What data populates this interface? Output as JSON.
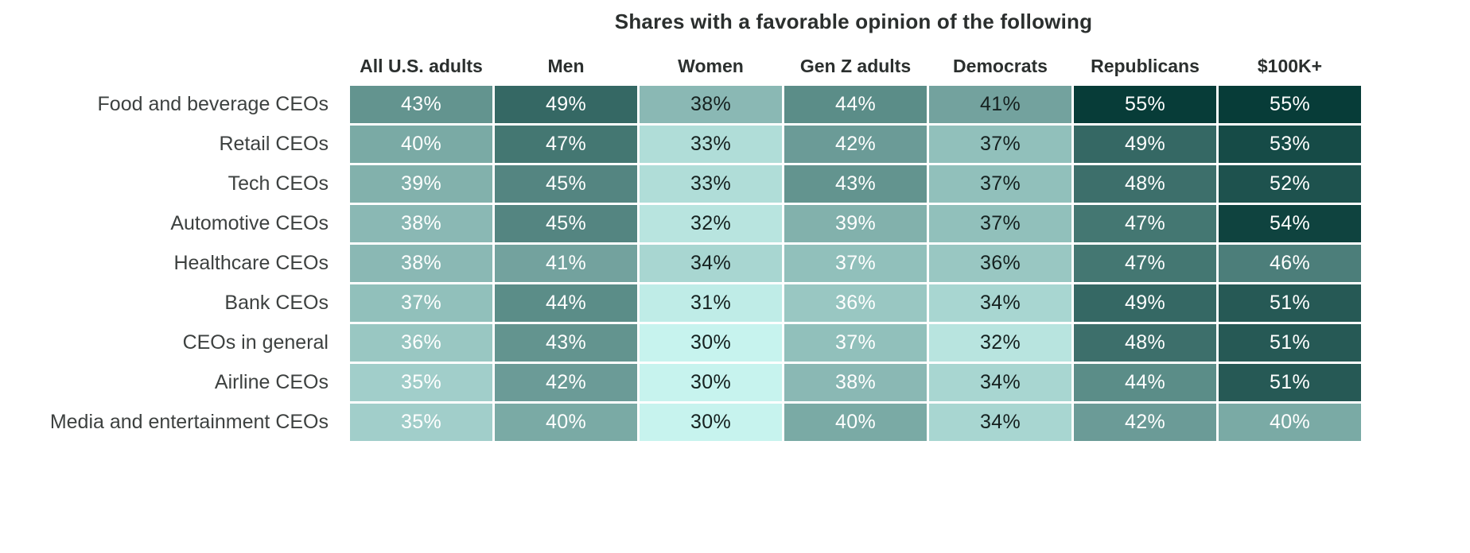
{
  "title": "Shares with a favorable opinion of the following",
  "chart_data": {
    "type": "heatmap",
    "title": "Shares with a favorable opinion of the following",
    "columns": [
      "All U.S. adults",
      "Men",
      "Women",
      "Gen Z adults",
      "Democrats",
      "Republicans",
      "$100K+"
    ],
    "rows": [
      "Food and beverage CEOs",
      "Retail CEOs",
      "Tech CEOs",
      "Automotive CEOs",
      "Healthcare CEOs",
      "Bank CEOs",
      "CEOs in general",
      "Airline CEOs",
      "Media and entertainment CEOs"
    ],
    "values": [
      [
        43,
        49,
        38,
        44,
        41,
        55,
        55
      ],
      [
        40,
        47,
        33,
        42,
        37,
        49,
        53
      ],
      [
        39,
        45,
        33,
        43,
        37,
        48,
        52
      ],
      [
        38,
        45,
        32,
        39,
        37,
        47,
        54
      ],
      [
        38,
        41,
        34,
        37,
        36,
        47,
        46
      ],
      [
        37,
        44,
        31,
        36,
        34,
        49,
        51
      ],
      [
        36,
        43,
        30,
        37,
        32,
        48,
        51
      ],
      [
        35,
        42,
        30,
        38,
        34,
        44,
        51
      ],
      [
        35,
        40,
        30,
        40,
        34,
        42,
        40
      ]
    ],
    "value_suffix": "%",
    "color_scale": {
      "domain": [
        30,
        55
      ],
      "light_color": "#c7f3ee",
      "dark_color": "#073c38"
    },
    "dark_text_columns": [
      "Women",
      "Democrats"
    ],
    "text_colors": {
      "on_dark": "#ffffff",
      "on_light": "#15201f"
    },
    "legend": "none",
    "grid": "white 3px gaps between cells"
  }
}
